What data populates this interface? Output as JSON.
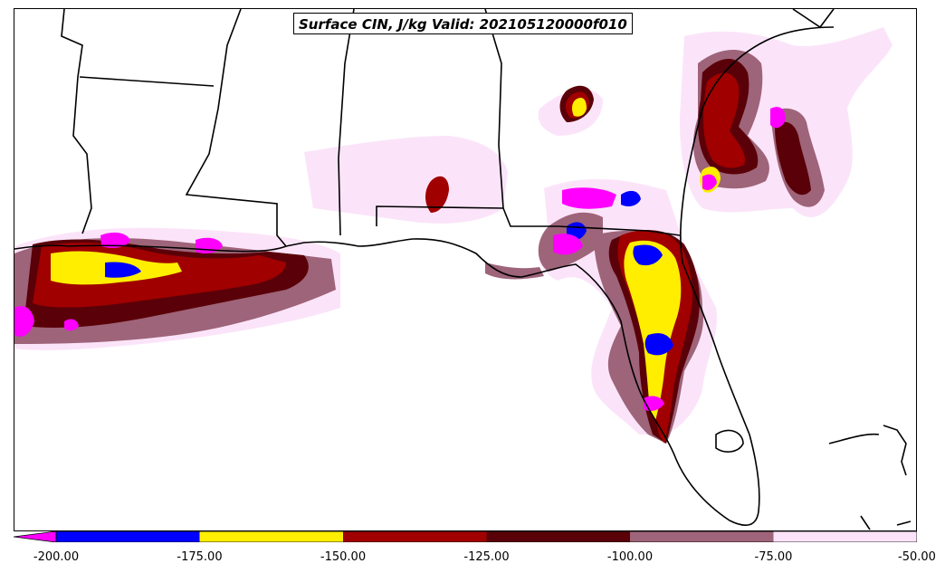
{
  "title": "Surface CIN, J/kg Valid: 202105120000f010",
  "colorbar": {
    "bins": [
      {
        "from": -200,
        "to": -175,
        "color": "#0000ff"
      },
      {
        "from": -175,
        "to": -150,
        "color": "#ffee00"
      },
      {
        "from": -150,
        "to": -125,
        "color": "#a00000"
      },
      {
        "from": -125,
        "to": -100,
        "color": "#5a0008"
      },
      {
        "from": -100,
        "to": -75,
        "color": "#9e6479"
      },
      {
        "from": -75,
        "to": -50,
        "color": "#fbe4f9"
      }
    ],
    "extend_min_color": "#ff00ff",
    "ticks": [
      "-200.00",
      "-175.00",
      "-150.00",
      "-125.00",
      "-100.00",
      "-75.00",
      "-50.00"
    ]
  },
  "map": {
    "region": "Gulf Coast / Florida",
    "colors": {
      "very_strong": "#ff00ff",
      "strong": "#0000ff",
      "moderate": "#ffee00",
      "dark_red": "#a00000",
      "darker": "#5a0008",
      "mauve": "#9e6479",
      "light": "#fbe4f9"
    }
  }
}
